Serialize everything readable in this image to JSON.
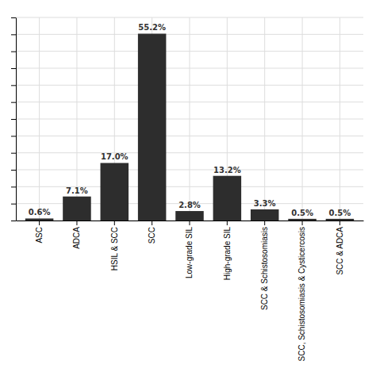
{
  "chart_data": {
    "type": "bar",
    "categories": [
      "ASC",
      "ADCA",
      "HSIL & SCC",
      "SCC",
      "Low-grade SIL",
      "High-grade SIL",
      "SCC & Schistosomiasis",
      "SCC, Schistosomiasis & Cysticercosis",
      "SCC & ADCA"
    ],
    "values": [
      0.6,
      7.1,
      17.0,
      55.2,
      2.8,
      13.2,
      3.3,
      0.5,
      0.5
    ],
    "value_labels": [
      "0.6%",
      "7.1%",
      "17.0%",
      "55.2%",
      "2.8%",
      "13.2%",
      "3.3%",
      "0.5%",
      "0.5%"
    ],
    "data_labels": true,
    "color": "#2d2d2d",
    "ylim": [
      0,
      60
    ],
    "yticks": [
      0,
      5,
      10,
      15,
      20,
      25,
      30,
      35,
      40,
      45,
      50,
      55,
      60
    ],
    "grid": true,
    "tick_labels": "x"
  }
}
